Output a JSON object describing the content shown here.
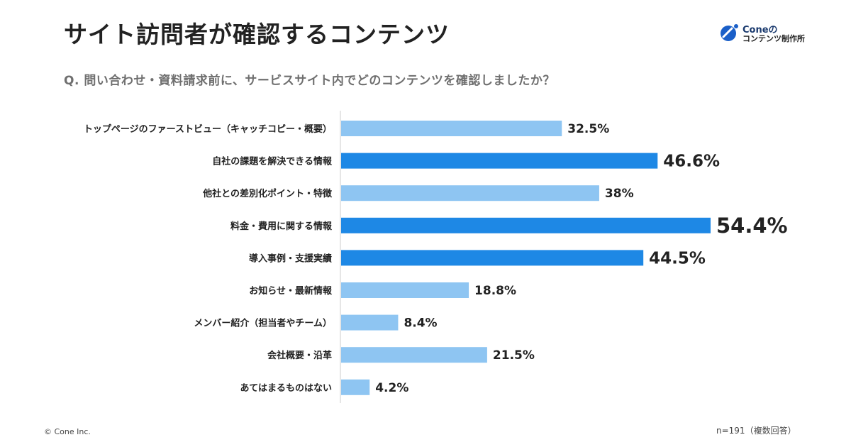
{
  "title": "サイト訪問者が確認するコンテンツ",
  "logo": {
    "brand": "Coneの",
    "subtitle": "コンテンツ制作所",
    "icon": "cone-logo-icon"
  },
  "question": "Q. 問い合わせ・資料請求前に、サービスサイト内でどのコンテンツを確認しましたか？",
  "footer": {
    "copyright": "© Cone Inc.",
    "note": "n=191（複数回答）"
  },
  "colors": {
    "highlight": "#1e88e5",
    "normal": "#8ec5f2",
    "axis": "#cccccc",
    "text": "#222222"
  },
  "chart_data": {
    "type": "bar",
    "orientation": "horizontal",
    "xlim": [
      0,
      54.4
    ],
    "grid": false,
    "categories": [
      "トップページのファーストビュー（キャッチコピー・概要）",
      "自社の課題を解決できる情報",
      "他社との差別化ポイント・特徴",
      "料金・費用に関する情報",
      "導入事例・支援実績",
      "お知らせ・最新情報",
      "メンバー紹介（担当者やチーム）",
      "会社概要・沿革",
      "あてはまるものはない"
    ],
    "values": [
      32.5,
      46.6,
      38,
      54.4,
      44.5,
      18.8,
      8.4,
      21.5,
      4.2
    ],
    "value_labels": [
      "32.5%",
      "46.6%",
      "38%",
      "54.4%",
      "44.5%",
      "18.8%",
      "8.4%",
      "21.5%",
      "4.2%"
    ],
    "highlighted": [
      false,
      true,
      false,
      true,
      true,
      false,
      false,
      false,
      false
    ]
  }
}
